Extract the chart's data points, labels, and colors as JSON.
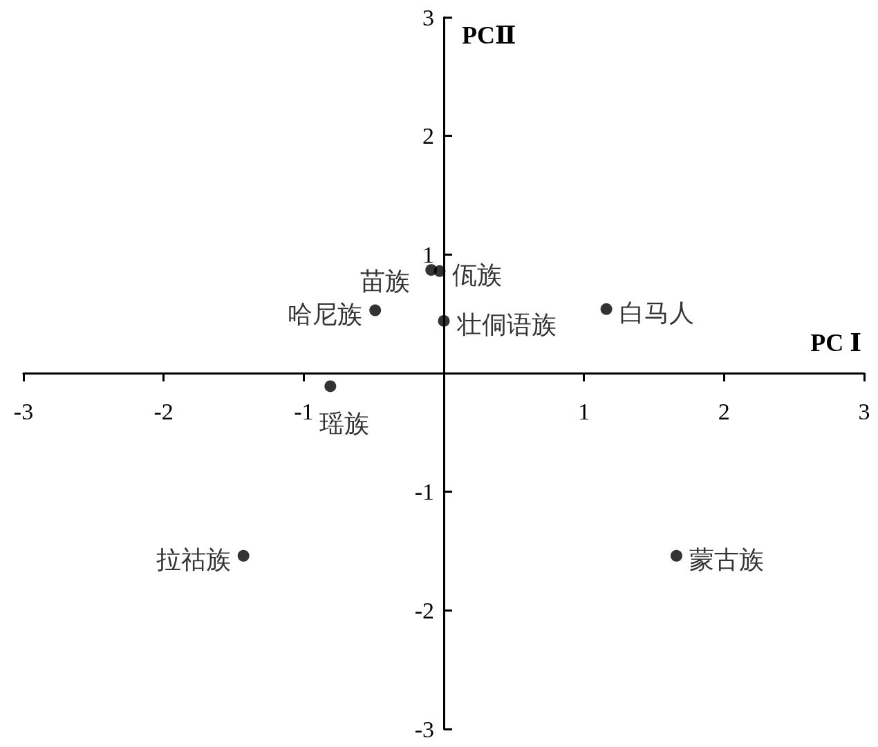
{
  "chart_data": {
    "type": "scatter",
    "xlabel": "PC Ⅰ",
    "ylabel": "PCⅡ",
    "xlim": [
      -3,
      3
    ],
    "ylim": [
      -3,
      3
    ],
    "xticks": [
      -3,
      -2,
      -1,
      {
        "value": 0,
        "label": null
      },
      1,
      2,
      3
    ],
    "yticks": [
      -3,
      -2,
      -1,
      {
        "value": 0,
        "label": null
      },
      1,
      2,
      3
    ],
    "marker": "circle",
    "series": [
      {
        "name": "苗族",
        "color": "#000000",
        "x": [
          -0.09
        ],
        "values": [
          0.87
        ]
      },
      {
        "name": "佤族",
        "color": "#000000",
        "x": [
          -0.03
        ],
        "values": [
          0.86
        ]
      },
      {
        "name": "哈尼族",
        "color": "#000000",
        "x": [
          -0.49
        ],
        "values": [
          0.53
        ]
      },
      {
        "name": "壮侗语族",
        "color": "#000000",
        "x": [
          0.0
        ],
        "values": [
          0.44
        ]
      },
      {
        "name": "白马人",
        "color": "#000000",
        "x": [
          1.16
        ],
        "values": [
          0.54
        ]
      },
      {
        "name": "瑶族",
        "color": "#000000",
        "x": [
          -0.81
        ],
        "values": [
          -0.11
        ]
      },
      {
        "name": "拉祜族",
        "color": "#000000",
        "x": [
          -1.43
        ],
        "values": [
          -1.54
        ]
      },
      {
        "name": "蒙古族",
        "color": "#000000",
        "x": [
          1.66
        ],
        "values": [
          -1.54
        ]
      }
    ]
  }
}
